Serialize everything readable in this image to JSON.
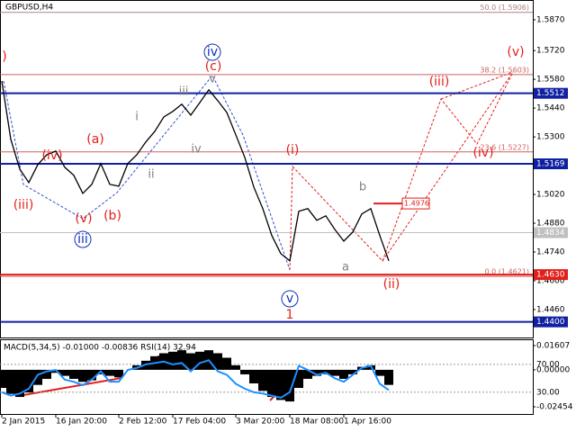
{
  "chart_data": [
    {
      "type": "price",
      "title": "GBPUSD,H4",
      "categories": [
        "2 Jan 2015",
        null,
        null,
        null,
        null,
        null,
        "16 Jan 20:00",
        null,
        null,
        null,
        null,
        null,
        null,
        "2 Feb 12:00",
        null,
        null,
        null,
        null,
        null,
        "17 Feb 04:00",
        null,
        null,
        null,
        null,
        null,
        null,
        "3 Mar 20:00",
        null,
        null,
        null,
        null,
        null,
        "18 Mar 08:00",
        null,
        null,
        null,
        null,
        null,
        "1 Apr 16:00",
        null,
        null,
        null,
        null,
        null
      ],
      "series": [
        {
          "color": "#000000",
          "values": [
            1.5572,
            1.5288,
            1.5143,
            1.5078,
            1.5165,
            1.5213,
            1.5231,
            1.5152,
            1.5113,
            1.5025,
            1.5069,
            1.517,
            1.5069,
            1.506,
            1.517,
            1.5213,
            1.5275,
            1.5327,
            1.5397,
            1.5424,
            1.5459,
            1.5406,
            1.5467,
            1.5529,
            1.5476,
            1.5419,
            1.531,
            1.52,
            1.5056,
            1.4951,
            1.482,
            1.4732,
            1.4697,
            1.4938,
            1.4951,
            1.4894,
            1.4916,
            1.485,
            1.4793,
            1.4837,
            1.4925,
            1.4951,
            1.482,
            1.4697
          ]
        }
      ],
      "ylim": [
        1.4324,
        1.5966
      ],
      "yticks": [
        {
          "value": 1.587,
          "label": "1.5870"
        },
        {
          "value": 1.572,
          "label": "1.5720"
        },
        {
          "value": 1.558,
          "label": "1.5580"
        },
        {
          "value": 1.544,
          "label": "1.5440"
        },
        {
          "value": 1.53,
          "label": "1.5300"
        },
        {
          "value": 1.516,
          "label": "1.5160"
        },
        {
          "value": 1.502,
          "label": "1.5020"
        },
        {
          "value": 1.488,
          "label": "1.4880"
        },
        {
          "value": 1.474,
          "label": "1.4740"
        },
        {
          "value": 1.46,
          "label": "1.4600"
        },
        {
          "value": 1.446,
          "label": "1.4460"
        }
      ],
      "levels": [
        {
          "value": 1.5906,
          "label": "50.0 (1.5906)",
          "color": "#b08080"
        },
        {
          "value": 1.5603,
          "label": "38.2 (1.5603)",
          "color": "#d06060"
        },
        {
          "value": 1.5227,
          "label": "23.6 (1.5227)",
          "color": "#d06060"
        },
        {
          "value": 1.4621,
          "label": "0.0 (1.4621)",
          "color": "#d06060"
        }
      ],
      "tags": [
        {
          "value": 1.5512,
          "label": "1.5512",
          "color": "#1020a0",
          "style": "full"
        },
        {
          "value": 1.5169,
          "label": "1.5169",
          "color": "#1020a0",
          "style": "full"
        },
        {
          "value": 1.4976,
          "label": "1.4976",
          "color": "#e0201b",
          "style": "outline"
        },
        {
          "value": 1.4834,
          "label": "1.4834",
          "color": "#c0c0c0",
          "style": "full"
        },
        {
          "value": 1.463,
          "label": "1.4630",
          "color": "#e0201b",
          "style": "full"
        },
        {
          "value": 1.44,
          "label": "1.4400",
          "color": "#1020a0",
          "style": "full"
        }
      ],
      "annotations": [
        {
          "text": ")",
          "color": "#e0201b"
        },
        {
          "text": "(iii)",
          "color": "#e0201b"
        },
        {
          "text": "(iv)",
          "color": "#e0201b"
        },
        {
          "text": "(a)",
          "color": "#e0201b"
        },
        {
          "text": "(v)",
          "color": "#e0201b"
        },
        {
          "text": "(b)",
          "color": "#e0201b"
        },
        {
          "text": "iii",
          "color": "#1030c0"
        },
        {
          "text": "i",
          "color": "#808080"
        },
        {
          "text": "ii",
          "color": "#808080"
        },
        {
          "text": "iii",
          "color": "#808080"
        },
        {
          "text": "iv",
          "color": "#808080"
        },
        {
          "text": "v",
          "color": "#808080"
        },
        {
          "text": "(c)",
          "color": "#e0201b"
        },
        {
          "text": "iv",
          "color": "#1030c0"
        },
        {
          "text": "(i)",
          "color": "#e0201b"
        },
        {
          "text": "b",
          "color": "#808080"
        },
        {
          "text": "a",
          "color": "#808080"
        },
        {
          "text": "v",
          "color": "#1030c0"
        },
        {
          "text": "1",
          "color": "#e0201b"
        },
        {
          "text": "(ii)",
          "color": "#e0201b"
        },
        {
          "text": "(iii)",
          "color": "#e0201b"
        },
        {
          "text": "(iv)",
          "color": "#e0201b"
        },
        {
          "text": "(v)",
          "color": "#e0201b"
        }
      ]
    },
    {
      "type": "macd",
      "title": "MACD(5,34,5) -0.01000 -0.00836 RSI(14) 32.94",
      "series": [
        {
          "color": "#000000",
          "values": [
            -0.012,
            -0.016,
            -0.018,
            -0.015,
            -0.01,
            -0.006,
            -0.002,
            -0.004,
            -0.006,
            -0.008,
            -0.007,
            -0.003,
            -0.004,
            -0.005,
            0.0,
            0.003,
            0.006,
            0.009,
            0.011,
            0.012,
            0.013,
            0.011,
            0.012,
            0.013,
            0.011,
            0.008,
            0.003,
            -0.003,
            -0.009,
            -0.014,
            -0.018,
            -0.02,
            -0.021,
            -0.012,
            -0.006,
            -0.004,
            -0.003,
            -0.004,
            -0.006,
            -0.003,
            0.002,
            0.003,
            -0.004,
            -0.01
          ]
        },
        {
          "color": "#1e90ff",
          "axis": "y2",
          "values": [
            30,
            25,
            28,
            35,
            55,
            60,
            62,
            48,
            45,
            40,
            48,
            60,
            45,
            45,
            62,
            65,
            70,
            72,
            74,
            70,
            72,
            60,
            72,
            76,
            60,
            55,
            42,
            35,
            30,
            28,
            25,
            22,
            30,
            68,
            62,
            55,
            58,
            50,
            45,
            55,
            65,
            68,
            42,
            33
          ]
        }
      ],
      "ylim": [
        -0.02866,
        0.01741
      ],
      "yticks": [
        0.01607,
        {
          "value": 0,
          "label": "0.00000"
        },
        -0.02454
      ],
      "y2lim": [
        0,
        100
      ],
      "y2ticks": [
        {
          "value": 70,
          "label": "70.00"
        },
        {
          "value": 30,
          "label": "30.00"
        }
      ]
    }
  ]
}
